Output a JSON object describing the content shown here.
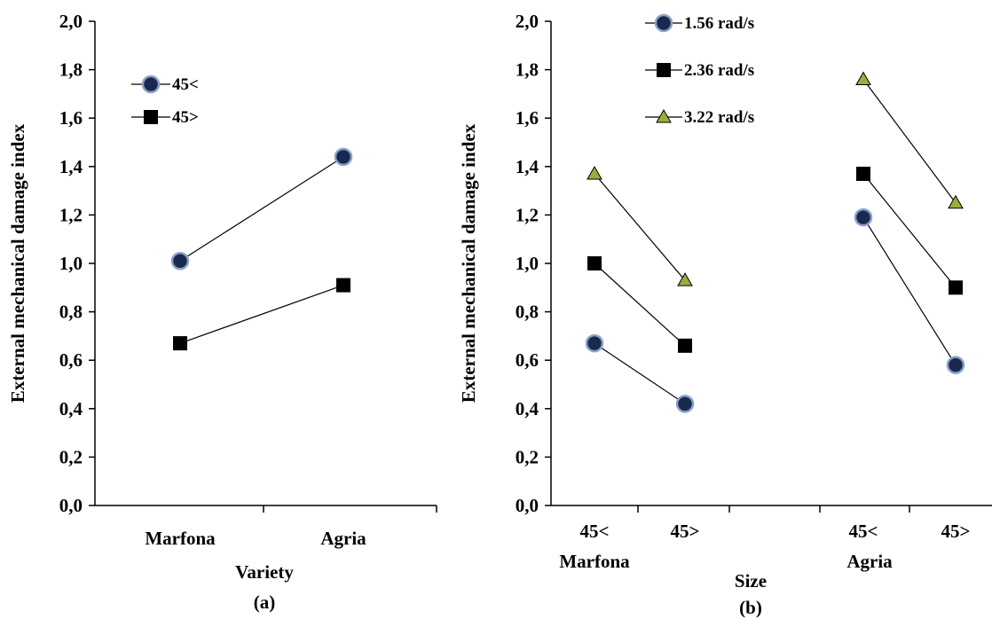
{
  "chart_data": [
    {
      "type": "line",
      "panel_label": "(a)",
      "xlabel": "Variety",
      "ylabel": "External mechanical damage index",
      "ylim": [
        0,
        2
      ],
      "ytick_labels": [
        "0,0",
        "0,2",
        "0,4",
        "0,6",
        "0,8",
        "1,0",
        "1,2",
        "1,4",
        "1,6",
        "1,8",
        "2,0"
      ],
      "categories": [
        "Marfona",
        "Agria"
      ],
      "legend_position": "top-left",
      "grid": false,
      "series": [
        {
          "name": "45<",
          "marker": "circle",
          "values": [
            1.01,
            1.44
          ]
        },
        {
          "name": "45>",
          "marker": "square",
          "values": [
            0.67,
            0.91
          ]
        }
      ]
    },
    {
      "type": "line",
      "panel_label": "(b)",
      "xlabel": "Size",
      "ylabel": "External mechanical damage index",
      "ylim": [
        0,
        2
      ],
      "ytick_labels": [
        "0,0",
        "0,2",
        "0,4",
        "0,6",
        "0,8",
        "1,0",
        "1,2",
        "1,4",
        "1,6",
        "1,8",
        "2,0"
      ],
      "categories": [
        "45<",
        "45>",
        "45<",
        "45>"
      ],
      "groups": [
        "Marfona",
        "Agria"
      ],
      "legend_position": "top-left",
      "grid": false,
      "series": [
        {
          "name": "1.56 rad/s",
          "marker": "circle",
          "values": [
            0.67,
            0.42,
            1.19,
            0.58
          ]
        },
        {
          "name": "2.36 rad/s",
          "marker": "square",
          "values": [
            1.0,
            0.66,
            1.37,
            0.9
          ]
        },
        {
          "name": "3.22 rad/s",
          "marker": "triangle",
          "values": [
            1.37,
            0.93,
            1.76,
            1.25
          ]
        }
      ]
    }
  ],
  "colors": {
    "circle_fill": "#1a2a4f",
    "circle_stroke": "#8aa0c8",
    "square_fill": "#000000",
    "triangle_fill": "#9aae3a",
    "triangle_stroke": "#000000",
    "line": "#000000"
  }
}
